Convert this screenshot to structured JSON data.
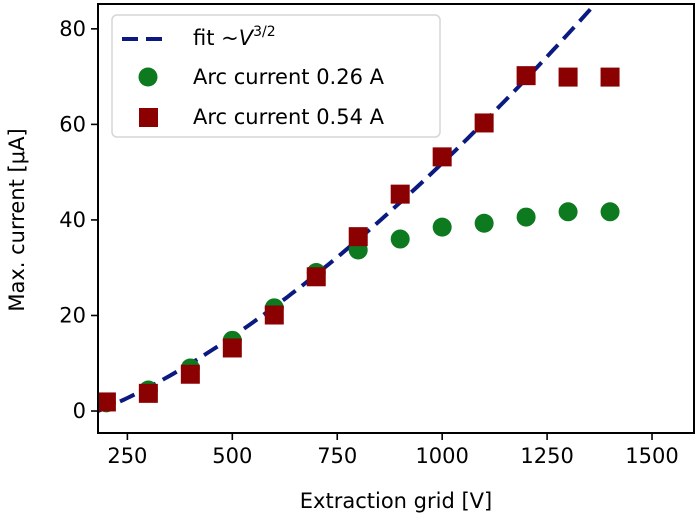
{
  "chart_data": {
    "type": "scatter",
    "title": "",
    "xlabel": "Extraction grid [V]",
    "ylabel": "Max. current [μA]",
    "xlim": [
      180,
      1600
    ],
    "ylim": [
      -4.6,
      85.2
    ],
    "xticks": [
      250,
      500,
      750,
      1000,
      1250,
      1500
    ],
    "yticks": [
      0,
      20,
      40,
      60,
      80
    ],
    "grid": false,
    "legend": {
      "placement": "top-left",
      "entries": [
        {
          "label_prefix": "fit  ~",
          "label_var": "V",
          "label_sup": "3/2",
          "marker": "dashed-line",
          "color": "#0b1a80"
        },
        {
          "label": "Arc current 0.26 A",
          "marker": "circle",
          "color": "#0d7a1f"
        },
        {
          "label": "Arc current 0.54 A",
          "marker": "square",
          "color": "#8b0000"
        }
      ]
    },
    "series": [
      {
        "name": "Arc current 0.26 A",
        "marker": "circle",
        "color": "#0d7a1f",
        "x": [
          200,
          300,
          400,
          500,
          600,
          700,
          800,
          900,
          1000,
          1100,
          1200,
          1300,
          1400
        ],
        "y": [
          1.7,
          4.4,
          9.0,
          14.8,
          21.6,
          29.0,
          33.7,
          36.0,
          38.5,
          39.3,
          40.6,
          41.7,
          41.7
        ]
      },
      {
        "name": "Arc current 0.54 A",
        "marker": "square",
        "color": "#8b0000",
        "x": [
          200,
          300,
          400,
          500,
          600,
          700,
          800,
          900,
          1000,
          1100,
          1200,
          1300,
          1400
        ],
        "y": [
          1.9,
          3.7,
          7.7,
          13.2,
          20.1,
          28.1,
          36.5,
          45.4,
          53.2,
          60.3,
          70.2,
          69.9,
          69.9
        ]
      },
      {
        "name": "fit ~V^3/2",
        "type": "line",
        "style": "dashed",
        "color": "#0b1a80",
        "model": "a*V^1.5 + b",
        "a": 0.001776,
        "b": -4.29,
        "x_range": [
          180,
          1400
        ]
      }
    ]
  }
}
